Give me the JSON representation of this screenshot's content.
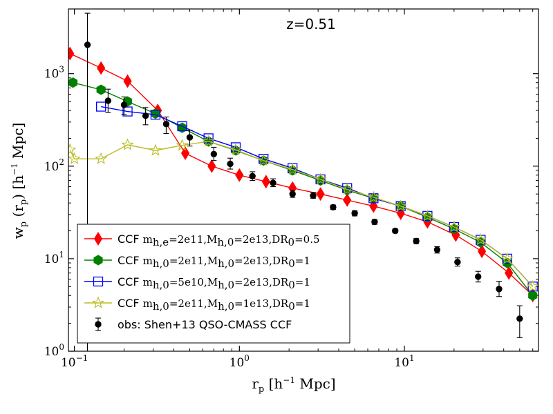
{
  "chart_data": {
    "type": "line",
    "title": "z=0.51",
    "xlabel": "r_p [h^-1 Mpc]",
    "ylabel": "w_p (r_p) [h^-1 Mpc]",
    "xscale": "log",
    "yscale": "log",
    "xlim": [
      0.092,
      65
    ],
    "ylim": [
      1,
      5000
    ],
    "x_ticks": [
      {
        "base": "10",
        "exp": "−1",
        "value": 0.1
      },
      {
        "base": "10",
        "exp": "0",
        "value": 1
      },
      {
        "base": "10",
        "exp": "1",
        "value": 10
      }
    ],
    "y_ticks": [
      {
        "base": "10",
        "exp": "0",
        "value": 1
      },
      {
        "base": "10",
        "exp": "1",
        "value": 10
      },
      {
        "base": "10",
        "exp": "2",
        "value": 100
      },
      {
        "base": "10",
        "exp": "3",
        "value": 1000
      }
    ],
    "legend_position": "lower-left",
    "series": [
      {
        "name": "CCF m_{h,e}=2e11,M_{h,0}=2e13,DR_0=0.5",
        "label_prefix": "CCF",
        "label_math": "mh,e=2e11,Mh,0=2e13,DR0=0.5",
        "color": "#ff0000",
        "marker": "diamond",
        "x": [
          0.094,
          0.145,
          0.21,
          0.32,
          0.47,
          0.68,
          1.0,
          1.45,
          2.1,
          3.1,
          4.5,
          6.5,
          9.5,
          13.8,
          20.5,
          29.5,
          43.0,
          60.0
        ],
        "y": [
          1650,
          1150,
          830,
          400,
          138,
          100,
          80,
          68,
          58,
          50,
          43,
          37,
          31,
          25,
          18,
          12,
          7,
          4
        ]
      },
      {
        "name": "CCF m_{h,0}=2e11,M_{h,0}=2e13,DR_0=1",
        "label_prefix": "CCF",
        "label_math": "mh,0=2e11,Mh,0=2e13,DR0=1",
        "color": "#008000",
        "marker": "hexagon",
        "x": [
          0.098,
          0.145,
          0.21,
          0.31,
          0.45,
          0.65,
          0.95,
          1.4,
          2.1,
          3.1,
          4.5,
          6.5,
          9.5,
          13.8,
          20.0,
          29.0,
          42.0,
          60.0
        ],
        "y": [
          800,
          670,
          500,
          370,
          260,
          185,
          148,
          115,
          90,
          70,
          55,
          45,
          37,
          28,
          21,
          15,
          9,
          4
        ]
      },
      {
        "name": "CCF m_{h,0}=5e10,M_{h,0}=2e13,DR_0=1",
        "label_prefix": "CCF",
        "label_math": "mh,0=5e10,Mh,0=2e13,DR0=1",
        "color": "#0000ff",
        "marker": "square",
        "x": [
          0.145,
          0.21,
          0.31,
          0.45,
          0.65,
          0.95,
          1.4,
          2.1,
          3.1,
          4.5,
          6.5,
          9.5,
          13.8,
          20.0,
          29.0,
          42.0,
          60.0
        ],
        "y": [
          440,
          390,
          360,
          270,
          200,
          160,
          120,
          95,
          72,
          58,
          45,
          37,
          29,
          22,
          16,
          10,
          5
        ]
      },
      {
        "name": "CCF m_{h,0}=2e11,M_{h,0}=1e13,DR_0=1",
        "label_prefix": "CCF",
        "label_math": "mh,0=2e11,Mh,0=1e13,DR0=1",
        "color": "#bbbb22",
        "marker": "star",
        "x": [
          0.094,
          0.1,
          0.145,
          0.21,
          0.31,
          0.45,
          0.65,
          0.95,
          1.4,
          2.1,
          3.1,
          4.5,
          6.5,
          9.5,
          13.8,
          20.0,
          29.0,
          42.0,
          60.0
        ],
        "y": [
          150,
          120,
          120,
          170,
          148,
          168,
          185,
          150,
          115,
          92,
          72,
          56,
          46,
          37,
          29,
          22,
          16,
          10,
          5
        ]
      }
    ],
    "observations": {
      "name": "obs: Shen+13 QSO-CMASS CCF",
      "label_text": "obs: Shen+13 QSO-CMASS CCF",
      "color": "#000000",
      "marker": "circle",
      "points": [
        {
          "x": 0.12,
          "y": 2050,
          "ylo": 1,
          "yhi": 4500
        },
        {
          "x": 0.16,
          "y": 510,
          "ylo": 380,
          "yhi": 680
        },
        {
          "x": 0.2,
          "y": 460,
          "ylo": 360,
          "yhi": 560
        },
        {
          "x": 0.27,
          "y": 350,
          "ylo": 280,
          "yhi": 430
        },
        {
          "x": 0.36,
          "y": 285,
          "ylo": 225,
          "yhi": 340
        },
        {
          "x": 0.5,
          "y": 205,
          "ylo": 165,
          "yhi": 245
        },
        {
          "x": 0.7,
          "y": 135,
          "ylo": 115,
          "yhi": 160
        },
        {
          "x": 0.88,
          "y": 106,
          "ylo": 93,
          "yhi": 122
        },
        {
          "x": 1.2,
          "y": 78,
          "ylo": 70,
          "yhi": 87
        },
        {
          "x": 1.6,
          "y": 66,
          "ylo": 60,
          "yhi": 73
        },
        {
          "x": 2.1,
          "y": 50,
          "ylo": 46,
          "yhi": 55
        },
        {
          "x": 2.8,
          "y": 48,
          "ylo": 45,
          "yhi": 52
        },
        {
          "x": 3.7,
          "y": 36,
          "ylo": 34,
          "yhi": 38
        },
        {
          "x": 5.0,
          "y": 31,
          "ylo": 29,
          "yhi": 33
        },
        {
          "x": 6.6,
          "y": 25,
          "ylo": 23.5,
          "yhi": 26.5
        },
        {
          "x": 8.8,
          "y": 20,
          "ylo": 19,
          "yhi": 21
        },
        {
          "x": 11.8,
          "y": 15.5,
          "ylo": 14.5,
          "yhi": 16.5
        },
        {
          "x": 15.8,
          "y": 12.5,
          "ylo": 11.5,
          "yhi": 13.5
        },
        {
          "x": 21.0,
          "y": 9.2,
          "ylo": 8.3,
          "yhi": 10.2
        },
        {
          "x": 28.0,
          "y": 6.4,
          "ylo": 5.6,
          "yhi": 7.3
        },
        {
          "x": 37.5,
          "y": 4.7,
          "ylo": 3.9,
          "yhi": 5.7
        },
        {
          "x": 50.0,
          "y": 2.25,
          "ylo": 1.4,
          "yhi": 3.1
        }
      ]
    }
  }
}
